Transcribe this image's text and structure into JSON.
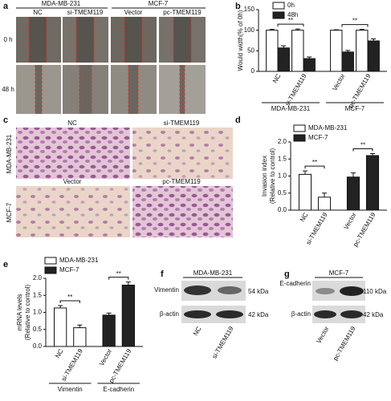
{
  "chart_data": [
    {
      "type": "bar",
      "label": "b",
      "ylabel": "Would width(% of 0h)",
      "categories": [
        "NC",
        "si-TMEM119",
        "Vector",
        "pc-TMEM119"
      ],
      "group_labels": [
        "MDA-MB-231",
        "MCF-7"
      ],
      "series": [
        {
          "name": "0h",
          "color": "#ffffff",
          "values": [
            100,
            100,
            100,
            100
          ],
          "errors": [
            2,
            3,
            1,
            2
          ]
        },
        {
          "name": "48h",
          "color": "#222222",
          "values": [
            57,
            31,
            47,
            74
          ],
          "errors": [
            5,
            4,
            4,
            5
          ]
        }
      ],
      "annotations": [
        "**",
        "**"
      ],
      "ylim": [
        0,
        150
      ],
      "yticks": [
        0,
        50,
        100,
        150
      ]
    },
    {
      "type": "bar",
      "label": "d",
      "ylabel": [
        "Invasion index",
        "(Relative to control)"
      ],
      "categories": [
        "NC",
        "si-TMEM119",
        "Vector",
        "pc-TMEM119"
      ],
      "series": [
        {
          "name": "MDA-MB-231",
          "color": "#ffffff",
          "values": [
            1.05,
            0.38,
            null,
            null
          ],
          "errors": [
            0.1,
            0.12,
            null,
            null
          ]
        },
        {
          "name": "MCF-7",
          "color": "#222222",
          "values": [
            null,
            null,
            0.97,
            1.6
          ],
          "errors": [
            null,
            null,
            0.12,
            0.06
          ]
        }
      ],
      "annotations": [
        "**",
        "**"
      ],
      "ylim": [
        0,
        2.0
      ],
      "yticks": [
        {
          "value": 0,
          "label": "0.0"
        },
        0.5,
        {
          "value": 1,
          "label": "1.0"
        },
        1.5,
        {
          "value": 2,
          "label": "2.0"
        }
      ]
    },
    {
      "type": "bar",
      "label": "e",
      "ylabel": [
        "mRNA  levels",
        "(Relative to control)"
      ],
      "categories": [
        "NC",
        "si-TMEM119",
        "Vector",
        "pc-TMEM119"
      ],
      "group_labels": [
        "Vimentin",
        "E-cadherin"
      ],
      "series": [
        {
          "name": "MDA-MB-231",
          "color": "#ffffff",
          "values": [
            1.13,
            0.55,
            null,
            null
          ],
          "errors": [
            0.07,
            0.08,
            null,
            null
          ]
        },
        {
          "name": "MCF-7",
          "color": "#222222",
          "values": [
            null,
            null,
            0.92,
            1.8
          ],
          "errors": [
            null,
            null,
            0.06,
            0.09
          ]
        }
      ],
      "annotations": [
        "**",
        "**"
      ],
      "ylim": [
        0,
        2.0
      ],
      "yticks": [
        {
          "value": 0,
          "label": "0.0"
        },
        0.5,
        {
          "value": 1,
          "label": "1.0"
        },
        1.5,
        {
          "value": 2,
          "label": "2.0"
        }
      ]
    }
  ],
  "panel_a": {
    "label": "a",
    "groups": [
      "MDA-MB-231",
      "MCF-7"
    ],
    "columns": [
      "NC",
      "si-TMEM119",
      "Vector",
      "pc-TMEM119"
    ],
    "rows": [
      "0 h",
      "48 h"
    ]
  },
  "panel_c": {
    "label": "c",
    "columns": [
      "NC",
      "si-TMEM119"
    ],
    "columns_row2": [
      "Vector",
      "pc-TMEM119"
    ],
    "rows": [
      "MDA-MB-231",
      "MCF-7"
    ]
  },
  "panel_f": {
    "label": "f",
    "title": "MDA-MB-231",
    "bands": [
      "Vimentin",
      "β-actin"
    ],
    "sizes": [
      "54 kDa",
      "42 kDa"
    ],
    "lanes": [
      "NC",
      "si-TMEM119"
    ]
  },
  "panel_g": {
    "label": "g",
    "title": "MCF-7",
    "bands": [
      "E-cadherin",
      "β-actin"
    ],
    "sizes": [
      "110 kDa",
      "42 kDa"
    ],
    "lanes": [
      "Vector",
      "pc-TMEM119"
    ]
  }
}
